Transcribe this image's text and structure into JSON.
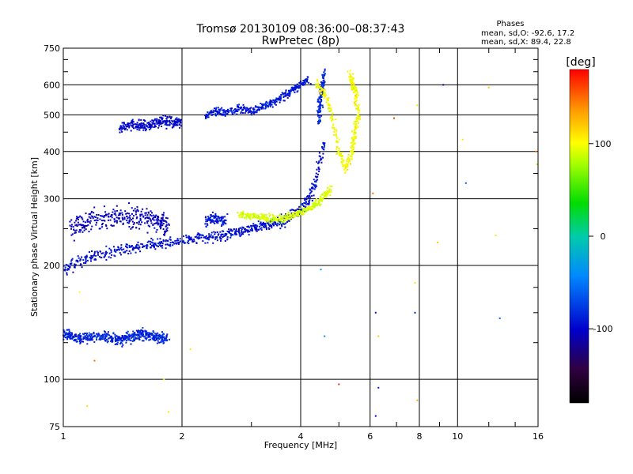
{
  "chart_data": {
    "type": "scatter",
    "title": "Tromsø 20130109 08:36:00–08:37:43",
    "subtitle": "RwPretec (8p)",
    "xlabel": "Frequency [MHz]",
    "ylabel": "Stationary phase Virtual Height [km]",
    "x_scale": "log2",
    "y_scale": "log",
    "xlim": [
      1,
      16
    ],
    "ylim": [
      75,
      750
    ],
    "x_ticks": [
      1,
      2,
      4,
      6,
      8,
      10,
      16
    ],
    "x_tick_labels": [
      "1",
      "2",
      "4",
      "6",
      "8",
      "10",
      "16"
    ],
    "y_ticks": [
      75,
      100,
      200,
      300,
      400,
      500,
      600,
      750
    ],
    "y_tick_labels": [
      "75",
      "100",
      "200",
      "300",
      "400",
      "500",
      "600",
      "750"
    ],
    "grid": true,
    "legend": {
      "title": "Phases",
      "lines": [
        "mean, sd,O: -92.6, 17.2",
        "mean, sd,X: 89.4, 22.8"
      ],
      "position": "top-right"
    },
    "colorbar": {
      "label": "[deg]",
      "ticks": [
        100,
        0,
        -100
      ],
      "range": [
        -180,
        180
      ],
      "colormap": "rainbow"
    },
    "series": [
      {
        "traces": [
          {
            "f": [
              1.0,
              1.1,
              1.2,
              1.35,
              1.5,
              1.65,
              1.8,
              2.0,
              2.2,
              2.4,
              2.6,
              2.8,
              3.0,
              3.2,
              3.4,
              3.6,
              3.8,
              4.0,
              4.2,
              4.4,
              4.6
            ],
            "h": [
              195,
              205,
              212,
              218,
              222,
              226,
              229,
              232,
              235,
              238,
              242,
              246,
              250,
              254,
              258,
              263,
              270,
              280,
              300,
              340,
              440
            ],
            "spread": 0.05,
            "n": 6,
            "phase": -95,
            "psd": 22
          },
          {
            "f": [
              4.45,
              4.48,
              4.5,
              4.55,
              4.58
            ],
            "h": [
              480,
              530,
              570,
              600,
              640
            ],
            "spread": 0.06,
            "n": 5,
            "phase": -85,
            "psd": 25
          },
          {
            "f": [
              1.05,
              1.15,
              1.3,
              1.45,
              1.6,
              1.75,
              1.85
            ],
            "h": [
              250,
              262,
              266,
              268,
              266,
              260,
              255
            ],
            "spread": 0.1,
            "n": 9,
            "phase": -105,
            "psd": 18
          },
          {
            "f": [
              2.3,
              2.45,
              2.6
            ],
            "h": [
              262,
              268,
              262
            ],
            "spread": 0.05,
            "n": 8,
            "phase": -90,
            "psd": 18
          },
          {
            "f": [
              1.4,
              1.55,
              1.7,
              1.85,
              2.0
            ],
            "h": [
              465,
              470,
              475,
              480,
              478
            ],
            "spread": 0.05,
            "n": 11,
            "phase": -100,
            "psd": 18
          },
          {
            "f": [
              2.3,
              2.45,
              2.6,
              2.8,
              3.0,
              3.2,
              3.4,
              3.6,
              3.8,
              4.0,
              4.2
            ],
            "h": [
              500,
              510,
              505,
              520,
              510,
              525,
              540,
              555,
              580,
              600,
              620
            ],
            "spread": 0.035,
            "n": 6,
            "phase": -92,
            "psd": 20
          },
          {
            "f": [
              1.0,
              1.1,
              1.25,
              1.4,
              1.55,
              1.7,
              1.85
            ],
            "h": [
              132,
              128,
              130,
              127,
              132,
              130,
              128
            ],
            "spread": 0.05,
            "n": 14,
            "phase": -85,
            "psd": 22
          },
          {
            "f": [
              2.8,
              3.0,
              3.2,
              3.4,
              3.6,
              3.8,
              4.0,
              4.2,
              4.4,
              4.6,
              4.8
            ],
            "h": [
              272,
              270,
              268,
              265,
              266,
              270,
              276,
              283,
              292,
              305,
              320
            ],
            "spread": 0.035,
            "n": 6,
            "phase": 90,
            "psd": 15
          },
          {
            "f": [
              4.4,
              4.6,
              4.8,
              5.0,
              5.2,
              5.4,
              5.5,
              5.6,
              5.5,
              5.4,
              5.35
            ],
            "h": [
              600,
              570,
              500,
              400,
              360,
              400,
              450,
              500,
              580,
              600,
              640
            ],
            "spread": 0.04,
            "n": 6,
            "phase": 100,
            "psd": 22
          }
        ]
      }
    ],
    "isolated_points": [
      {
        "x": 6.3,
        "y": 95,
        "phase": -90
      },
      {
        "x": 6.2,
        "y": 80,
        "phase": -100
      },
      {
        "x": 6.2,
        "y": 150,
        "phase": -95
      },
      {
        "x": 6.3,
        "y": 130,
        "phase": 120
      },
      {
        "x": 7.8,
        "y": 150,
        "phase": -90
      },
      {
        "x": 7.8,
        "y": 180,
        "phase": 110
      },
      {
        "x": 8.9,
        "y": 230,
        "phase": 120
      },
      {
        "x": 9.2,
        "y": 600,
        "phase": -110
      },
      {
        "x": 10.3,
        "y": 430,
        "phase": 110
      },
      {
        "x": 10.5,
        "y": 330,
        "phase": -60
      },
      {
        "x": 12.0,
        "y": 590,
        "phase": 120
      },
      {
        "x": 12.5,
        "y": 240,
        "phase": 110
      },
      {
        "x": 12.8,
        "y": 145,
        "phase": -60
      },
      {
        "x": 15.8,
        "y": 400,
        "phase": 150
      },
      {
        "x": 15.9,
        "y": 370,
        "phase": 80
      },
      {
        "x": 7.9,
        "y": 88,
        "phase": 130
      },
      {
        "x": 6.9,
        "y": 490,
        "phase": 160
      },
      {
        "x": 5.0,
        "y": 97,
        "phase": 170
      },
      {
        "x": 4.5,
        "y": 195,
        "phase": -30
      },
      {
        "x": 4.6,
        "y": 130,
        "phase": -40
      },
      {
        "x": 6.1,
        "y": 310,
        "phase": 150
      },
      {
        "x": 1.2,
        "y": 112,
        "phase": 150
      },
      {
        "x": 1.1,
        "y": 170,
        "phase": 100
      },
      {
        "x": 1.8,
        "y": 100,
        "phase": 100
      },
      {
        "x": 1.85,
        "y": 82,
        "phase": 110
      },
      {
        "x": 2.1,
        "y": 120,
        "phase": 110
      },
      {
        "x": 1.15,
        "y": 85,
        "phase": 110
      },
      {
        "x": 7.9,
        "y": 530,
        "phase": 90
      }
    ]
  }
}
